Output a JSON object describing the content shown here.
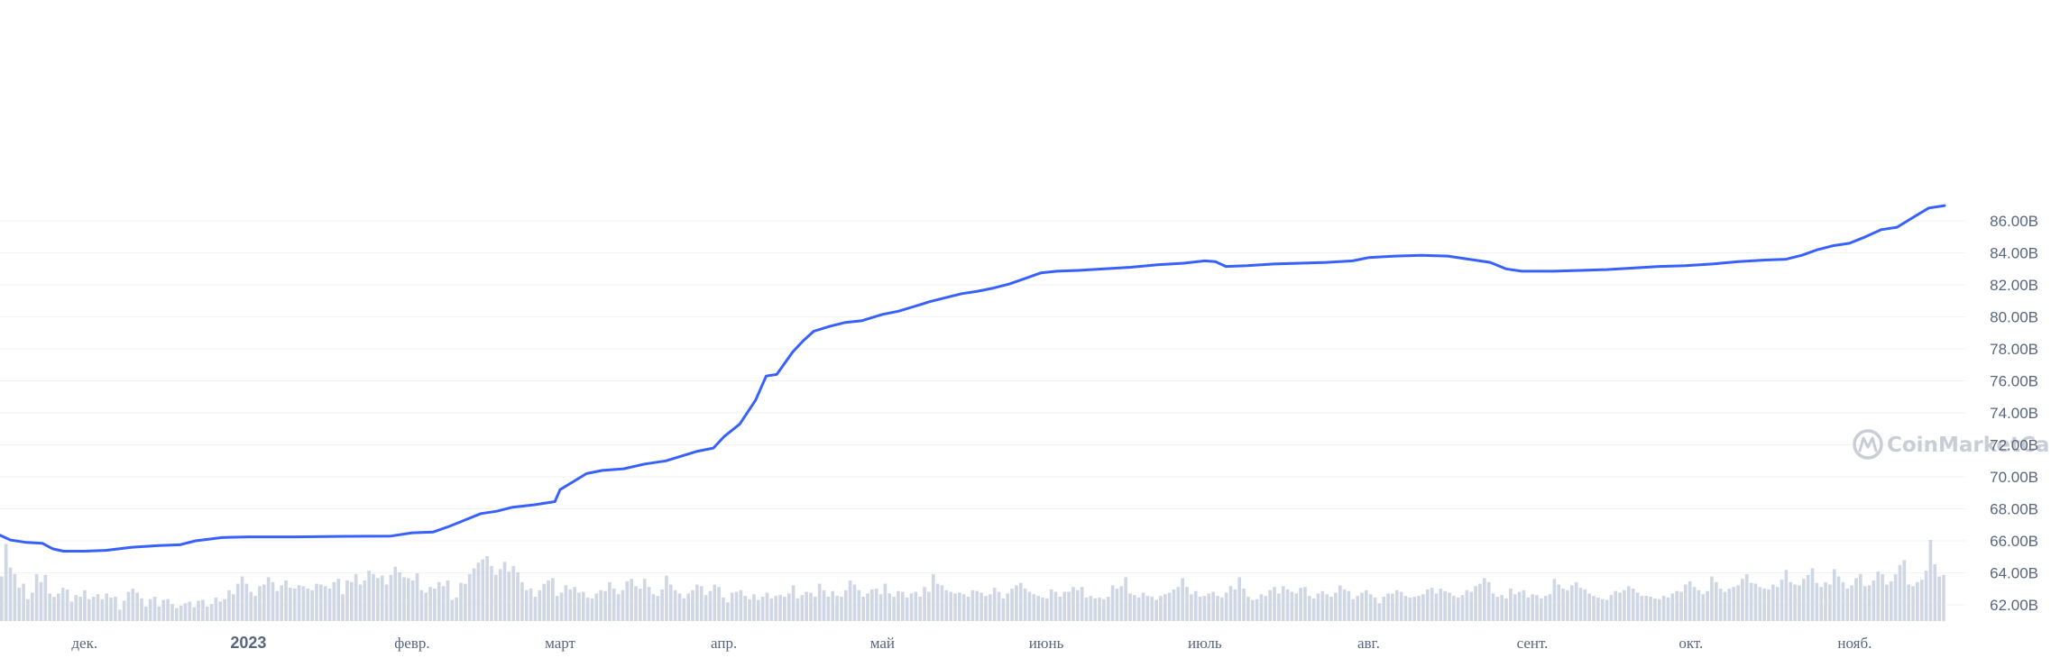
{
  "watermark": {
    "text": "CoinMarketCap",
    "icon": "coinmarketcap-logo-icon"
  },
  "colors": {
    "line": "#3861fb",
    "volume": "#cfd6e4",
    "grid": "#f1f3f6",
    "text": "#58667e",
    "watermark": "#c9ced6"
  },
  "chart_data": {
    "type": "line",
    "title": "",
    "xlabel": "",
    "ylabel": "",
    "yticks": [
      "62.00B",
      "64.00B",
      "66.00B",
      "68.00B",
      "70.00B",
      "72.00B",
      "74.00B",
      "76.00B",
      "78.00B",
      "80.00B",
      "82.00B",
      "84.00B",
      "86.00B"
    ],
    "ylim": [
      61.2,
      87.2
    ],
    "xlim": [
      "2022-11-15",
      "2023-11-18"
    ],
    "xticks": [
      {
        "label": "дек.",
        "date": "2022-12-01"
      },
      {
        "label": "2023",
        "date": "2023-01-01",
        "bold": true
      },
      {
        "label": "февр.",
        "date": "2023-02-01"
      },
      {
        "label": "март",
        "date": "2023-03-01"
      },
      {
        "label": "апр.",
        "date": "2023-04-01"
      },
      {
        "label": "май",
        "date": "2023-05-01"
      },
      {
        "label": "июнь",
        "date": "2023-06-01"
      },
      {
        "label": "июль",
        "date": "2023-07-01"
      },
      {
        "label": "авг.",
        "date": "2023-08-01"
      },
      {
        "label": "сент.",
        "date": "2023-09-01"
      },
      {
        "label": "окт.",
        "date": "2023-10-01"
      },
      {
        "label": "нояб.",
        "date": "2023-11-01"
      }
    ],
    "grid": true,
    "series": [
      {
        "points": [
          [
            "2022-11-15",
            66.35
          ],
          [
            "2022-11-17",
            66.05
          ],
          [
            "2022-11-20",
            65.9
          ],
          [
            "2022-11-23",
            65.85
          ],
          [
            "2022-11-25",
            65.5
          ],
          [
            "2022-11-27",
            65.35
          ],
          [
            "2022-12-01",
            65.35
          ],
          [
            "2022-12-05",
            65.4
          ],
          [
            "2022-12-10",
            65.6
          ],
          [
            "2022-12-15",
            65.7
          ],
          [
            "2022-12-19",
            65.75
          ],
          [
            "2022-12-22",
            66.0
          ],
          [
            "2022-12-27",
            66.2
          ],
          [
            "2023-01-01",
            66.25
          ],
          [
            "2023-01-10",
            66.25
          ],
          [
            "2023-01-20",
            66.28
          ],
          [
            "2023-01-28",
            66.3
          ],
          [
            "2023-02-01",
            66.5
          ],
          [
            "2023-02-05",
            66.55
          ],
          [
            "2023-02-08",
            66.9
          ],
          [
            "2023-02-11",
            67.3
          ],
          [
            "2023-02-14",
            67.7
          ],
          [
            "2023-02-17",
            67.85
          ],
          [
            "2023-02-20",
            68.1
          ],
          [
            "2023-02-24",
            68.25
          ],
          [
            "2023-02-28",
            68.45
          ],
          [
            "2023-03-01",
            69.2
          ],
          [
            "2023-03-03",
            69.6
          ],
          [
            "2023-03-06",
            70.2
          ],
          [
            "2023-03-09",
            70.4
          ],
          [
            "2023-03-13",
            70.5
          ],
          [
            "2023-03-17",
            70.8
          ],
          [
            "2023-03-21",
            71.0
          ],
          [
            "2023-03-24",
            71.3
          ],
          [
            "2023-03-27",
            71.6
          ],
          [
            "2023-03-30",
            71.8
          ],
          [
            "2023-04-01",
            72.5
          ],
          [
            "2023-04-04",
            73.3
          ],
          [
            "2023-04-07",
            74.8
          ],
          [
            "2023-04-09",
            76.3
          ],
          [
            "2023-04-11",
            76.4
          ],
          [
            "2023-04-14",
            77.8
          ],
          [
            "2023-04-16",
            78.5
          ],
          [
            "2023-04-18",
            79.1
          ],
          [
            "2023-04-21",
            79.4
          ],
          [
            "2023-04-24",
            79.65
          ],
          [
            "2023-04-27",
            79.75
          ],
          [
            "2023-05-01",
            80.15
          ],
          [
            "2023-05-04",
            80.35
          ],
          [
            "2023-05-07",
            80.65
          ],
          [
            "2023-05-10",
            80.95
          ],
          [
            "2023-05-13",
            81.2
          ],
          [
            "2023-05-16",
            81.45
          ],
          [
            "2023-05-19",
            81.6
          ],
          [
            "2023-05-22",
            81.8
          ],
          [
            "2023-05-25",
            82.05
          ],
          [
            "2023-05-28",
            82.4
          ],
          [
            "2023-05-31",
            82.75
          ],
          [
            "2023-06-03",
            82.85
          ],
          [
            "2023-06-07",
            82.9
          ],
          [
            "2023-06-12",
            83.0
          ],
          [
            "2023-06-17",
            83.1
          ],
          [
            "2023-06-22",
            83.25
          ],
          [
            "2023-06-27",
            83.35
          ],
          [
            "2023-07-01",
            83.5
          ],
          [
            "2023-07-03",
            83.45
          ],
          [
            "2023-07-05",
            83.15
          ],
          [
            "2023-07-09",
            83.2
          ],
          [
            "2023-07-14",
            83.3
          ],
          [
            "2023-07-19",
            83.35
          ],
          [
            "2023-07-24",
            83.4
          ],
          [
            "2023-07-29",
            83.5
          ],
          [
            "2023-08-01",
            83.7
          ],
          [
            "2023-08-06",
            83.8
          ],
          [
            "2023-08-11",
            83.85
          ],
          [
            "2023-08-16",
            83.8
          ],
          [
            "2023-08-20",
            83.6
          ],
          [
            "2023-08-24",
            83.4
          ],
          [
            "2023-08-27",
            83.0
          ],
          [
            "2023-08-30",
            82.85
          ],
          [
            "2023-09-05",
            82.85
          ],
          [
            "2023-09-10",
            82.9
          ],
          [
            "2023-09-15",
            82.95
          ],
          [
            "2023-09-20",
            83.05
          ],
          [
            "2023-09-25",
            83.15
          ],
          [
            "2023-09-30",
            83.2
          ],
          [
            "2023-10-05",
            83.3
          ],
          [
            "2023-10-10",
            83.45
          ],
          [
            "2023-10-15",
            83.55
          ],
          [
            "2023-10-19",
            83.6
          ],
          [
            "2023-10-22",
            83.85
          ],
          [
            "2023-10-25",
            84.2
          ],
          [
            "2023-10-28",
            84.45
          ],
          [
            "2023-10-31",
            84.6
          ],
          [
            "2023-11-03",
            85.0
          ],
          [
            "2023-11-06",
            85.45
          ],
          [
            "2023-11-09",
            85.6
          ],
          [
            "2023-11-12",
            86.2
          ],
          [
            "2023-11-15",
            86.8
          ],
          [
            "2023-11-18",
            86.95
          ]
        ]
      }
    ],
    "volume": {
      "description_units": "relative bar height 0-1",
      "values": [
        0.55,
        0.95,
        0.66,
        0.58,
        0.41,
        0.46,
        0.27,
        0.35,
        0.58,
        0.48,
        0.57,
        0.34,
        0.3,
        0.34,
        0.41,
        0.39,
        0.24,
        0.32,
        0.3,
        0.38,
        0.27,
        0.3,
        0.33,
        0.27,
        0.34,
        0.29,
        0.3,
        0.14,
        0.25,
        0.36,
        0.4,
        0.35,
        0.28,
        0.18,
        0.27,
        0.3,
        0.18,
        0.26,
        0.27,
        0.21,
        0.16,
        0.19,
        0.22,
        0.24,
        0.17,
        0.25,
        0.26,
        0.18,
        0.21,
        0.29,
        0.24,
        0.27,
        0.38,
        0.33,
        0.46,
        0.55,
        0.46,
        0.36,
        0.31,
        0.43,
        0.45,
        0.54,
        0.48,
        0.37,
        0.44,
        0.5,
        0.41,
        0.4,
        0.44,
        0.43,
        0.4,
        0.38,
        0.46,
        0.45,
        0.43,
        0.4,
        0.48,
        0.52,
        0.33,
        0.5,
        0.48,
        0.58,
        0.45,
        0.5,
        0.62,
        0.58,
        0.53,
        0.56,
        0.45,
        0.57,
        0.67,
        0.6,
        0.54,
        0.53,
        0.5,
        0.59,
        0.38,
        0.35,
        0.42,
        0.4,
        0.48,
        0.43,
        0.5,
        0.26,
        0.29,
        0.47,
        0.46,
        0.58,
        0.65,
        0.72,
        0.76,
        0.8,
        0.68,
        0.57,
        0.64,
        0.73,
        0.61,
        0.68,
        0.6,
        0.48,
        0.38,
        0.4,
        0.3,
        0.38,
        0.46,
        0.5,
        0.53,
        0.31,
        0.35,
        0.44,
        0.39,
        0.42,
        0.35,
        0.36,
        0.29,
        0.28,
        0.34,
        0.38,
        0.37,
        0.48,
        0.4,
        0.33,
        0.38,
        0.49,
        0.52,
        0.43,
        0.4,
        0.52,
        0.42,
        0.33,
        0.31,
        0.39,
        0.56,
        0.45,
        0.38,
        0.34,
        0.28,
        0.34,
        0.38,
        0.45,
        0.43,
        0.32,
        0.37,
        0.45,
        0.42,
        0.29,
        0.23,
        0.35,
        0.36,
        0.38,
        0.31,
        0.27,
        0.33,
        0.26,
        0.3,
        0.35,
        0.28,
        0.31,
        0.32,
        0.3,
        0.34,
        0.44,
        0.28,
        0.32,
        0.36,
        0.35,
        0.3,
        0.46,
        0.38,
        0.3,
        0.37,
        0.31,
        0.3,
        0.38,
        0.5,
        0.45,
        0.38,
        0.3,
        0.34,
        0.39,
        0.4,
        0.33,
        0.46,
        0.34,
        0.3,
        0.37,
        0.36,
        0.29,
        0.34,
        0.36,
        0.3,
        0.42,
        0.36,
        0.58,
        0.46,
        0.44,
        0.38,
        0.36,
        0.34,
        0.35,
        0.33,
        0.3,
        0.38,
        0.37,
        0.35,
        0.31,
        0.33,
        0.41,
        0.36,
        0.28,
        0.34,
        0.4,
        0.44,
        0.47,
        0.4,
        0.36,
        0.33,
        0.31,
        0.29,
        0.28,
        0.39,
        0.36,
        0.3,
        0.36,
        0.36,
        0.42,
        0.38,
        0.42,
        0.29,
        0.31,
        0.28,
        0.29,
        0.27,
        0.3,
        0.44,
        0.4,
        0.43,
        0.54,
        0.34,
        0.32,
        0.29,
        0.35,
        0.31,
        0.3,
        0.26,
        0.31,
        0.33,
        0.35,
        0.39,
        0.42,
        0.53,
        0.42,
        0.33,
        0.37,
        0.3,
        0.31,
        0.34,
        0.36,
        0.31,
        0.29,
        0.35,
        0.43,
        0.39,
        0.54,
        0.4,
        0.3,
        0.26,
        0.27,
        0.33,
        0.31,
        0.38,
        0.42,
        0.34,
        0.43,
        0.39,
        0.36,
        0.34,
        0.41,
        0.42,
        0.31,
        0.28,
        0.34,
        0.37,
        0.33,
        0.3,
        0.35,
        0.44,
        0.39,
        0.37,
        0.27,
        0.31,
        0.35,
        0.38,
        0.33,
        0.29,
        0.22,
        0.3,
        0.34,
        0.34,
        0.38,
        0.36,
        0.31,
        0.29,
        0.3,
        0.31,
        0.33,
        0.39,
        0.41,
        0.34,
        0.4,
        0.37,
        0.35,
        0.31,
        0.29,
        0.32,
        0.38,
        0.36,
        0.43,
        0.46,
        0.53,
        0.48,
        0.34,
        0.3,
        0.32,
        0.28,
        0.4,
        0.33,
        0.36,
        0.38,
        0.29,
        0.33,
        0.32,
        0.28,
        0.31,
        0.33,
        0.52,
        0.45,
        0.4,
        0.38,
        0.44,
        0.48,
        0.41,
        0.39,
        0.34,
        0.31,
        0.29,
        0.27,
        0.26,
        0.32,
        0.37,
        0.35,
        0.38,
        0.43,
        0.4,
        0.35,
        0.31,
        0.31,
        0.3,
        0.28,
        0.27,
        0.31,
        0.29,
        0.34,
        0.37,
        0.36,
        0.45,
        0.49,
        0.42,
        0.38,
        0.33,
        0.37,
        0.55,
        0.48,
        0.4,
        0.36,
        0.4,
        0.42,
        0.44,
        0.52,
        0.58,
        0.47,
        0.46,
        0.42,
        0.4,
        0.39,
        0.45,
        0.42,
        0.51,
        0.63,
        0.48,
        0.45,
        0.44,
        0.52,
        0.57,
        0.65,
        0.47,
        0.42,
        0.48,
        0.45,
        0.64,
        0.55,
        0.48,
        0.4,
        0.44,
        0.53,
        0.58,
        0.43,
        0.44,
        0.5,
        0.61,
        0.58,
        0.45,
        0.49,
        0.58,
        0.69,
        0.75,
        0.45,
        0.43,
        0.48,
        0.51,
        0.62,
        1.0,
        0.7,
        0.55,
        0.57
      ]
    }
  }
}
